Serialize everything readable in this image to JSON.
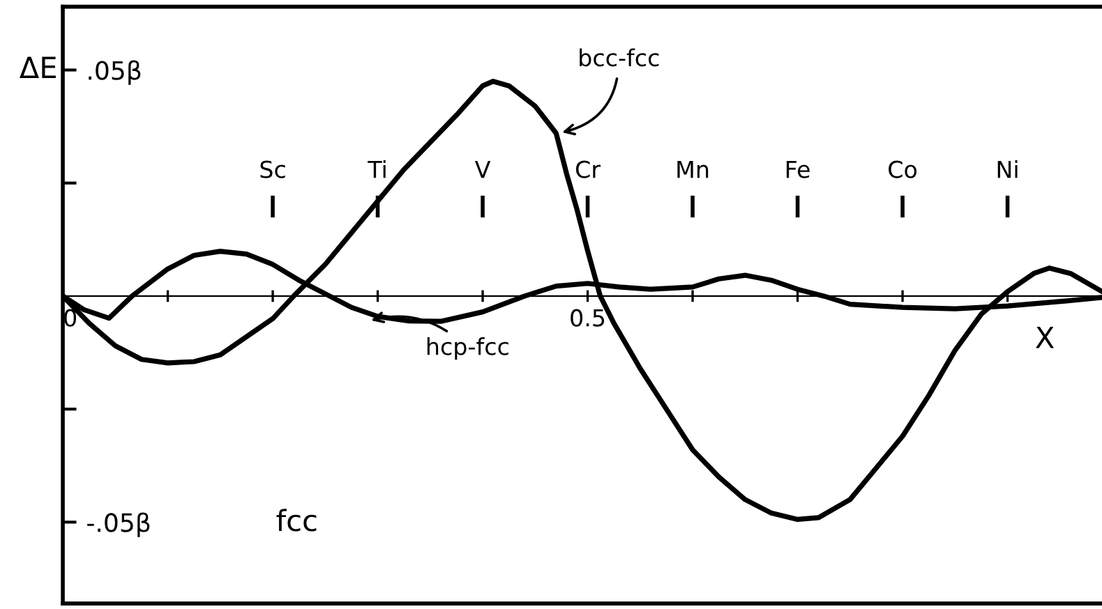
{
  "chart_data": {
    "type": "line",
    "xlabel": "X",
    "ylabel": "ΔE",
    "xlim": [
      0,
      0.99
    ],
    "ylim": [
      -0.068,
      0.064
    ],
    "xticks": [
      {
        "value": 0,
        "label": "0"
      },
      {
        "value": 0.1,
        "label": null
      },
      {
        "value": 0.2,
        "label": null
      },
      {
        "value": 0.3,
        "label": null
      },
      {
        "value": 0.4,
        "label": null
      },
      {
        "value": 0.5,
        "label": "0.5"
      },
      {
        "value": 0.6,
        "label": null
      },
      {
        "value": 0.7,
        "label": null
      },
      {
        "value": 0.8,
        "label": null
      },
      {
        "value": 0.9,
        "label": null
      }
    ],
    "yticks": [
      {
        "value": 0.05,
        "label": ".05β"
      },
      {
        "value": 0.025,
        "label": null
      },
      {
        "value": -0.025,
        "label": null
      },
      {
        "value": -0.05,
        "label": "-.05β"
      }
    ],
    "series": [
      {
        "color": "#000000",
        "x": [
          0,
          0.025,
          0.05,
          0.075,
          0.1,
          0.125,
          0.15,
          0.175,
          0.2,
          0.22,
          0.25,
          0.3,
          0.325,
          0.35,
          0.375,
          0.4,
          0.41,
          0.425,
          0.45,
          0.46,
          0.47,
          0.48,
          0.49,
          0.5,
          0.512,
          0.525,
          0.55,
          0.575,
          0.6,
          0.625,
          0.65,
          0.675,
          0.7,
          0.72,
          0.75,
          0.775,
          0.8,
          0.825,
          0.85,
          0.875,
          0.9,
          0.925,
          0.94,
          0.96,
          0.99
        ],
        "values": [
          0,
          -0.006,
          -0.011,
          -0.014,
          -0.0148,
          -0.0145,
          -0.013,
          -0.009,
          -0.005,
          0,
          0.007,
          0.021,
          0.028,
          0.034,
          0.04,
          0.0465,
          0.0475,
          0.0465,
          0.042,
          0.039,
          0.036,
          0.027,
          0.019,
          0.01,
          0,
          -0.006,
          -0.016,
          -0.025,
          -0.034,
          -0.04,
          -0.045,
          -0.048,
          -0.0494,
          -0.049,
          -0.045,
          -0.038,
          -0.031,
          -0.022,
          -0.012,
          -0.004,
          0.001,
          0.005,
          0.0062,
          0.005,
          0.001
        ]
      },
      {
        "color": "#000000",
        "x": [
          0,
          0.02,
          0.044,
          0.066,
          0.1,
          0.125,
          0.15,
          0.175,
          0.2,
          0.225,
          0.25,
          0.275,
          0.3,
          0.33,
          0.36,
          0.4,
          0.44,
          0.47,
          0.5,
          0.53,
          0.56,
          0.6,
          0.625,
          0.65,
          0.675,
          0.7,
          0.725,
          0.75,
          0.8,
          0.85,
          0.9,
          0.95,
          0.99
        ],
        "values": [
          0,
          -0.003,
          -0.0049,
          0,
          0.006,
          0.009,
          0.0099,
          0.0093,
          0.007,
          0.0035,
          0.0005,
          -0.0025,
          -0.0045,
          -0.0055,
          -0.0056,
          -0.0035,
          0,
          0.0022,
          0.0028,
          0.002,
          0.0015,
          0.002,
          0.0038,
          0.0046,
          0.0035,
          0.0015,
          0,
          -0.0018,
          -0.0025,
          -0.0028,
          -0.0022,
          -0.0012,
          -0.0003
        ]
      }
    ],
    "ref_lines": [
      {
        "axis": "x",
        "value": 0.2,
        "label": "Sc"
      },
      {
        "axis": "x",
        "value": 0.3,
        "label": "Ti"
      },
      {
        "axis": "x",
        "value": 0.4,
        "label": "V"
      },
      {
        "axis": "x",
        "value": 0.5,
        "label": "Cr"
      },
      {
        "axis": "x",
        "value": 0.6,
        "label": "Mn"
      },
      {
        "axis": "x",
        "value": 0.7,
        "label": "Fe"
      },
      {
        "axis": "x",
        "value": 0.8,
        "label": "Co"
      },
      {
        "axis": "x",
        "value": 0.9,
        "label": "Ni"
      }
    ],
    "annotations": [
      {
        "text": "bcc-fcc",
        "x": 0.472,
        "y": 0.036
      },
      {
        "text": "hcp-fcc",
        "x": 0.29,
        "y": -0.0056
      },
      "fcc"
    ],
    "line_style": "solid",
    "marker": "none",
    "grid": false,
    "legend": false
  }
}
